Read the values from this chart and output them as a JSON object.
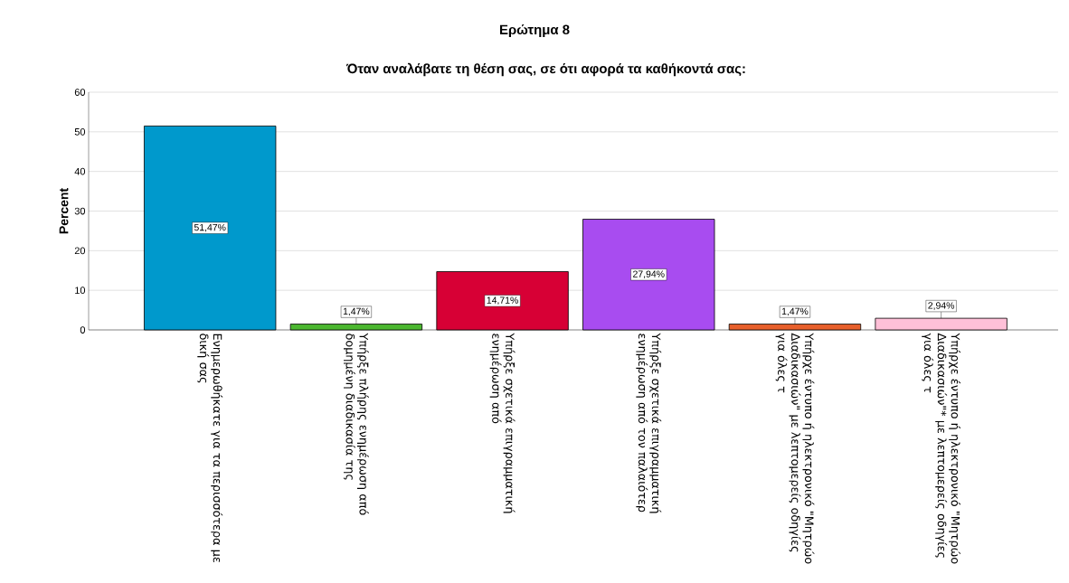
{
  "chart_data": {
    "type": "bar",
    "title": "Ερώτημα 8",
    "subtitle": "Όταν αναλάβατε τη θέση σας, σε ότι αφορά τα καθήκοντά σας:",
    "ylabel": "Percent",
    "categories": [
      "Ενημερωθήκατε για τα περισσότερα με δική σας",
      "Υπήρξε πλήρης ενημέρωση από δομημένη διαδικασία της",
      "Υπήρξε σχετικά επιγραμματική ενημέρωση από",
      "Υπήρξε σχετικά επιγραμματική ενημέρωση από τον παλαιότερ",
      "Υπήρχε έντυπο ή ηλεκτρονικό \"Μητρώο Διαδικασιών\" με λεπτομερείς οδηγίες για όλες τ",
      "Υπήρχε έντυπο ή ηλεκτρονικό \"Μητρώο Διαδικασιών\"* με λεπτομερείς οδηγίες για όλες τ"
    ],
    "values": [
      51.47,
      1.47,
      14.71,
      27.94,
      1.47,
      2.94
    ],
    "value_labels": [
      "51,47%",
      "1,47%",
      "14,71%",
      "27,94%",
      "1,47%",
      "2,94%"
    ],
    "colors": [
      "#0099cc",
      "#4cb830",
      "#d70035",
      "#a84cf0",
      "#e8602c",
      "#ffc0d8"
    ],
    "ylim": [
      0,
      60
    ],
    "yticks": [
      0,
      10,
      20,
      30,
      40,
      50,
      60
    ],
    "grid": "y"
  }
}
